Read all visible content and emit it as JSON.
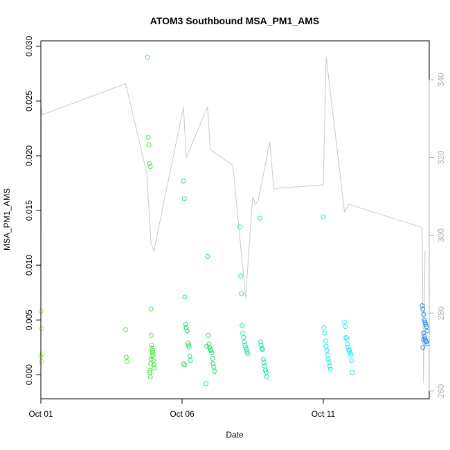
{
  "chart_data": {
    "type": "scatter",
    "title": "ATOM3 Southbound MSA_PM1_AMS",
    "xlabel": "Date",
    "ylabel": "MSA_PM1_AMS",
    "xlim": [
      0,
      27.5
    ],
    "ylim": [
      -0.0022,
      0.0305
    ],
    "y2lim": [
      258,
      350
    ],
    "x_ticks": [
      {
        "value": 0,
        "label": "Oct 01"
      },
      {
        "value": 10,
        "label": "Oct 06"
      },
      {
        "value": 20,
        "label": "Oct 11"
      }
    ],
    "y_ticks": [
      0.0,
      0.005,
      0.01,
      0.015,
      0.02,
      0.025,
      0.03
    ],
    "y_tick_labels": [
      "0.000",
      "0.005",
      "0.010",
      "0.015",
      "0.020",
      "0.025",
      "0.030"
    ],
    "y2_ticks": [
      260,
      280,
      300,
      320,
      340
    ],
    "y2_tick_labels": [
      "260",
      "280",
      "300",
      "320",
      "340"
    ],
    "colors": {
      "line": "#c8c8c8",
      "axis": "#000000",
      "right_axis": "#b0b0b0",
      "point_start": "#a6f23a",
      "point_mid": "#21e36a",
      "point_cyan": "#20e8e8",
      "point_end": "#2390e8"
    },
    "secondary_series": {
      "name": "",
      "x": [
        0.0,
        0.05,
        0.1,
        6.0,
        7.5,
        7.8,
        8.0,
        10.1,
        10.3,
        11.8,
        12.0,
        13.6,
        14.5,
        15.0,
        15.2,
        15.4,
        16.2,
        16.5,
        20.0,
        20.2,
        21.5,
        21.8,
        27.0,
        27.1,
        27.2
      ],
      "y": [
        275,
        333,
        331,
        339,
        316,
        298,
        296,
        333,
        320,
        333,
        322,
        318,
        284,
        310,
        308,
        309,
        324,
        312,
        313,
        346,
        306,
        308,
        302,
        262,
        296
      ]
    },
    "series": [
      {
        "name": "",
        "color_group": "start",
        "x": [
          0.0,
          0.05,
          0.1,
          0.0,
          0.05
        ],
        "y": [
          0.0058,
          0.0042,
          0.0019,
          0.0017,
          0.0012
        ]
      },
      {
        "name": "",
        "color_group": "green",
        "x": [
          6.0,
          6.05,
          6.1,
          7.55,
          7.6,
          7.65,
          7.7,
          7.75,
          7.8,
          7.82,
          7.85,
          7.88,
          7.9,
          7.92,
          7.95,
          7.98,
          8.0,
          8.02,
          7.7,
          7.72,
          7.75,
          7.78,
          7.8,
          7.85
        ],
        "y": [
          0.0041,
          0.0016,
          0.0012,
          0.029,
          0.0217,
          0.021,
          0.0193,
          0.019,
          0.006,
          0.0036,
          0.0027,
          0.0024,
          0.0022,
          0.002,
          0.0018,
          0.0013,
          0.0009,
          0.0006,
          0.0004,
          0.0002,
          -0.0002,
          0.001,
          0.0014,
          0.0017
        ]
      },
      {
        "name": "",
        "color_group": "mid",
        "x": [
          10.1,
          10.15,
          10.2,
          10.25,
          10.3,
          10.35,
          10.4,
          10.45,
          10.5,
          10.55,
          10.6,
          10.1,
          10.2,
          11.8,
          11.85,
          11.9,
          11.95,
          12.0,
          12.05,
          12.1,
          12.15,
          12.2,
          12.25,
          12.3,
          11.7,
          11.75
        ],
        "y": [
          0.0177,
          0.0161,
          0.0071,
          0.0046,
          0.0043,
          0.004,
          0.0029,
          0.0027,
          0.0025,
          0.0017,
          0.0013,
          0.001,
          0.0009,
          0.0108,
          0.0036,
          0.0028,
          0.0025,
          0.0023,
          0.0022,
          0.002,
          0.0015,
          0.001,
          0.0007,
          0.0003,
          -0.0008,
          0.0026
        ]
      },
      {
        "name": "",
        "color_group": "mid2",
        "x": [
          14.1,
          14.15,
          14.2,
          14.25,
          14.3,
          14.35,
          14.4,
          14.45,
          14.5,
          14.55,
          14.6,
          14.65,
          15.5,
          15.55,
          15.6,
          15.65,
          15.7,
          15.75,
          15.8,
          15.85,
          15.9,
          15.95,
          16.0
        ],
        "y": [
          0.0135,
          0.009,
          0.0074,
          0.0045,
          0.0038,
          0.0034,
          0.003,
          0.0027,
          0.0025,
          0.0023,
          0.0021,
          0.0019,
          0.0143,
          0.003,
          0.0027,
          0.0024,
          0.0023,
          0.0014,
          0.0011,
          0.0008,
          0.0004,
          0.0002,
          -0.0002
        ]
      },
      {
        "name": "",
        "color_group": "cyan",
        "x": [
          20.0,
          20.05,
          20.1,
          20.15,
          20.2,
          20.25,
          20.3,
          20.35,
          20.4,
          20.45,
          20.5,
          21.5,
          21.55,
          21.6,
          21.65,
          21.7,
          21.75,
          21.8,
          21.85,
          21.9,
          21.95,
          22.0,
          22.05
        ],
        "y": [
          0.0144,
          0.0043,
          0.0038,
          0.0031,
          0.0026,
          0.0022,
          0.0018,
          0.0014,
          0.0011,
          0.0008,
          0.0005,
          0.0048,
          0.0044,
          0.0034,
          0.0033,
          0.0028,
          0.0025,
          0.0023,
          0.0022,
          0.002,
          0.0018,
          0.0013,
          0.0002
        ]
      },
      {
        "name": "",
        "color_group": "end",
        "x": [
          27.0,
          27.05,
          27.1,
          27.15,
          27.2,
          27.25,
          27.3,
          27.35,
          27.1,
          27.15,
          27.2,
          27.25,
          27.3,
          27.35,
          27.05,
          27.1
        ],
        "y": [
          0.0063,
          0.006,
          0.0055,
          0.005,
          0.0048,
          0.0046,
          0.0044,
          0.004,
          0.0038,
          0.0035,
          0.0033,
          0.0031,
          0.003,
          0.0028,
          0.0025,
          0.0032
        ]
      }
    ]
  }
}
